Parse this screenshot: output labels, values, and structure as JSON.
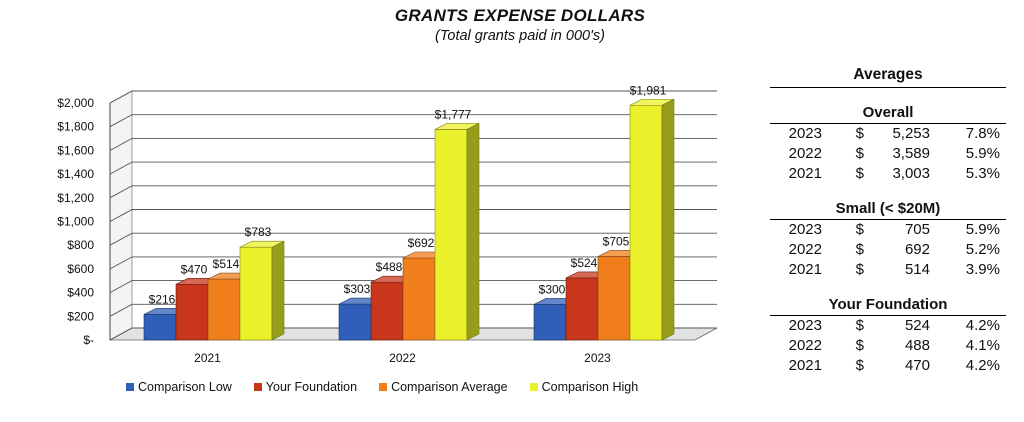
{
  "chart_data": {
    "type": "bar",
    "title": "GRANTS EXPENSE DOLLARS",
    "subtitle": "(Total grants paid in 000's)",
    "categories": [
      "2021",
      "2022",
      "2023"
    ],
    "series": [
      {
        "name": "Comparison Low",
        "values": [
          216,
          303,
          300
        ],
        "labels": [
          "$216",
          "$303",
          "$300"
        ],
        "color": "#2f5fb8"
      },
      {
        "name": "Your Foundation",
        "values": [
          470,
          488,
          524
        ],
        "labels": [
          "$470",
          "$488",
          "$524"
        ],
        "color": "#c8361c"
      },
      {
        "name": "Comparison Average",
        "values": [
          514,
          692,
          705
        ],
        "labels": [
          "$514",
          "$692",
          "$705"
        ],
        "color": "#f07e1a"
      },
      {
        "name": "Comparison High",
        "values": [
          783,
          1777,
          1981
        ],
        "labels": [
          "$783",
          "$1,777",
          "$1,981"
        ],
        "color": "#eaf02a"
      }
    ],
    "ylim": [
      0,
      2000
    ],
    "y_ticks": [
      {
        "value": 0,
        "label": "$-"
      },
      {
        "value": 200,
        "label": "$200"
      },
      {
        "value": 400,
        "label": "$400"
      },
      {
        "value": 600,
        "label": "$600"
      },
      {
        "value": 800,
        "label": "$800"
      },
      {
        "value": 1000,
        "label": "$1,000"
      },
      {
        "value": 1200,
        "label": "$1,200"
      },
      {
        "value": 1400,
        "label": "$1,400"
      },
      {
        "value": 1600,
        "label": "$1,600"
      },
      {
        "value": 1800,
        "label": "$1,800"
      },
      {
        "value": 2000,
        "label": "$2,000"
      }
    ],
    "grid": true,
    "legend": "bottom",
    "style": "3d"
  },
  "averages": {
    "title": "Averages",
    "sections": [
      {
        "title": "Overall",
        "rows": [
          {
            "year": "2023",
            "dollar": "$",
            "value": "5,253",
            "pct": "7.8%"
          },
          {
            "year": "2022",
            "dollar": "$",
            "value": "3,589",
            "pct": "5.9%"
          },
          {
            "year": "2021",
            "dollar": "$",
            "value": "3,003",
            "pct": "5.3%"
          }
        ]
      },
      {
        "title": "Small (< $20M)",
        "rows": [
          {
            "year": "2023",
            "dollar": "$",
            "value": "705",
            "pct": "5.9%"
          },
          {
            "year": "2022",
            "dollar": "$",
            "value": "692",
            "pct": "5.2%"
          },
          {
            "year": "2021",
            "dollar": "$",
            "value": "514",
            "pct": "3.9%"
          }
        ]
      },
      {
        "title": "Your Foundation",
        "rows": [
          {
            "year": "2023",
            "dollar": "$",
            "value": "524",
            "pct": "4.2%"
          },
          {
            "year": "2022",
            "dollar": "$",
            "value": "488",
            "pct": "4.1%"
          },
          {
            "year": "2021",
            "dollar": "$",
            "value": "470",
            "pct": "4.2%"
          }
        ]
      }
    ]
  }
}
